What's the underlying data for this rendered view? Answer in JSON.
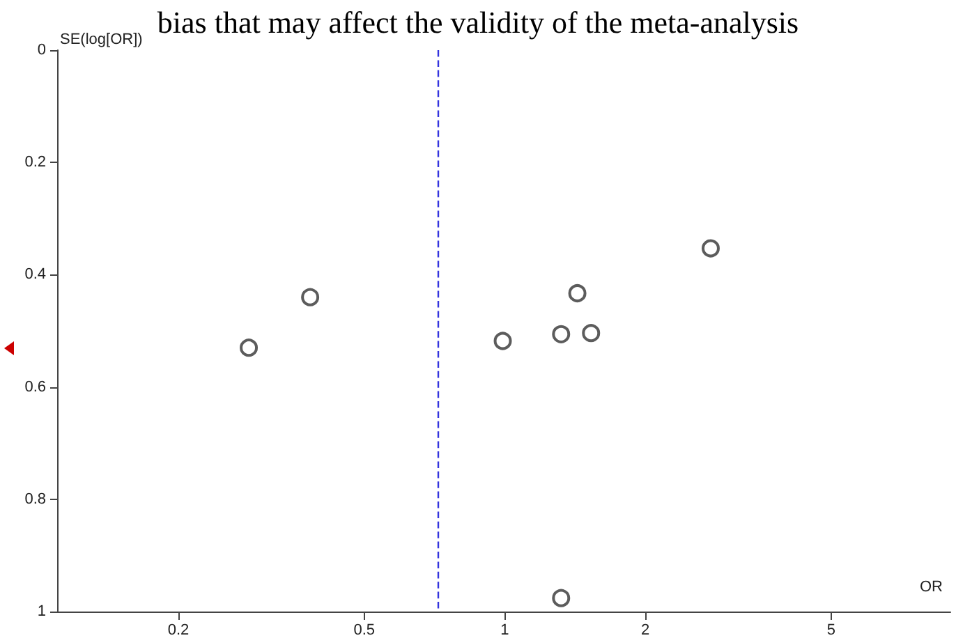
{
  "chart_data": {
    "type": "scatter",
    "title": "bias that may affect the validity of the meta-analysis",
    "xlabel": "OR",
    "ylabel": "SE(log[OR])",
    "x": [
      0.283,
      0.383,
      0.99,
      1.32,
      1.43,
      1.53,
      2.76,
      1.32
    ],
    "values": [
      0.53,
      0.44,
      0.518,
      0.506,
      0.433,
      0.504,
      0.353,
      0.976
    ],
    "color": "#333333",
    "marker": "circle",
    "log": "x",
    "grid": false,
    "xlim": [
      0.11,
      9
    ],
    "xticks": [
      0.2,
      0.5,
      1,
      2,
      5
    ],
    "ylim": [
      1,
      0
    ],
    "yticks": [
      0,
      0.2,
      0.4,
      0.6,
      0.8,
      1
    ],
    "ref_lines": [
      {
        "axis": "x",
        "value": 0.72,
        "label": null,
        "color": "#3333dd",
        "line_style": "dashed"
      }
    ]
  }
}
